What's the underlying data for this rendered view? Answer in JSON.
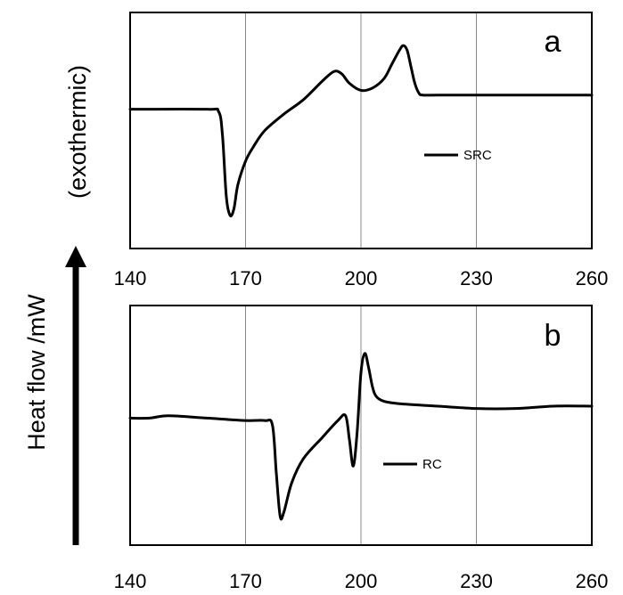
{
  "chart_data": [
    {
      "type": "line",
      "panel_label": "a",
      "xlabel": "",
      "ylabel": "",
      "xlim": [
        140,
        260
      ],
      "ylim": [
        0,
        100
      ],
      "xticks": [
        "140",
        "170",
        "200",
        "230",
        "260"
      ],
      "grid": "vertical gridlines at 170, 200, 230",
      "legend": "center-right",
      "series": [
        {
          "name": "SRC",
          "color": "#000000",
          "x": [
            140,
            160,
            163,
            164,
            165,
            166,
            167,
            168,
            170,
            172,
            175,
            180,
            185,
            190,
            193,
            195,
            197,
            200,
            203,
            206,
            208,
            210,
            211,
            212,
            213,
            214,
            215,
            216,
            220,
            230,
            240,
            250,
            260
          ],
          "y": [
            59,
            59,
            58,
            48,
            22,
            14,
            17,
            27,
            37,
            43,
            50,
            57,
            63,
            71,
            75,
            74,
            70,
            67,
            68,
            72,
            78,
            84,
            86,
            84,
            77,
            70,
            66,
            65,
            65,
            65,
            65,
            65,
            65
          ]
        }
      ]
    },
    {
      "type": "line",
      "panel_label": "b",
      "xlabel": "",
      "ylabel": "",
      "xlim": [
        140,
        260
      ],
      "ylim": [
        0,
        100
      ],
      "xticks": [
        "140",
        "170",
        "200",
        "230",
        "260"
      ],
      "grid": "vertical gridlines at 170, 200, 230",
      "legend": "center",
      "series": [
        {
          "name": "RC",
          "color": "#000000",
          "x": [
            140,
            145,
            150,
            160,
            170,
            175,
            177,
            178,
            179,
            180,
            182,
            185,
            190,
            194,
            196,
            197,
            198,
            199,
            200,
            201,
            202,
            203,
            204,
            206,
            210,
            220,
            230,
            240,
            250,
            260
          ],
          "y": [
            53,
            53,
            54,
            53,
            52,
            52,
            50,
            30,
            12,
            14,
            26,
            36,
            45,
            52,
            54,
            44,
            33,
            47,
            72,
            80,
            74,
            66,
            62,
            60,
            59,
            58,
            57,
            57,
            58,
            58
          ]
        }
      ]
    }
  ],
  "ylabel": {
    "main": "Heat flow /mW",
    "sub": "(exothermic)"
  }
}
